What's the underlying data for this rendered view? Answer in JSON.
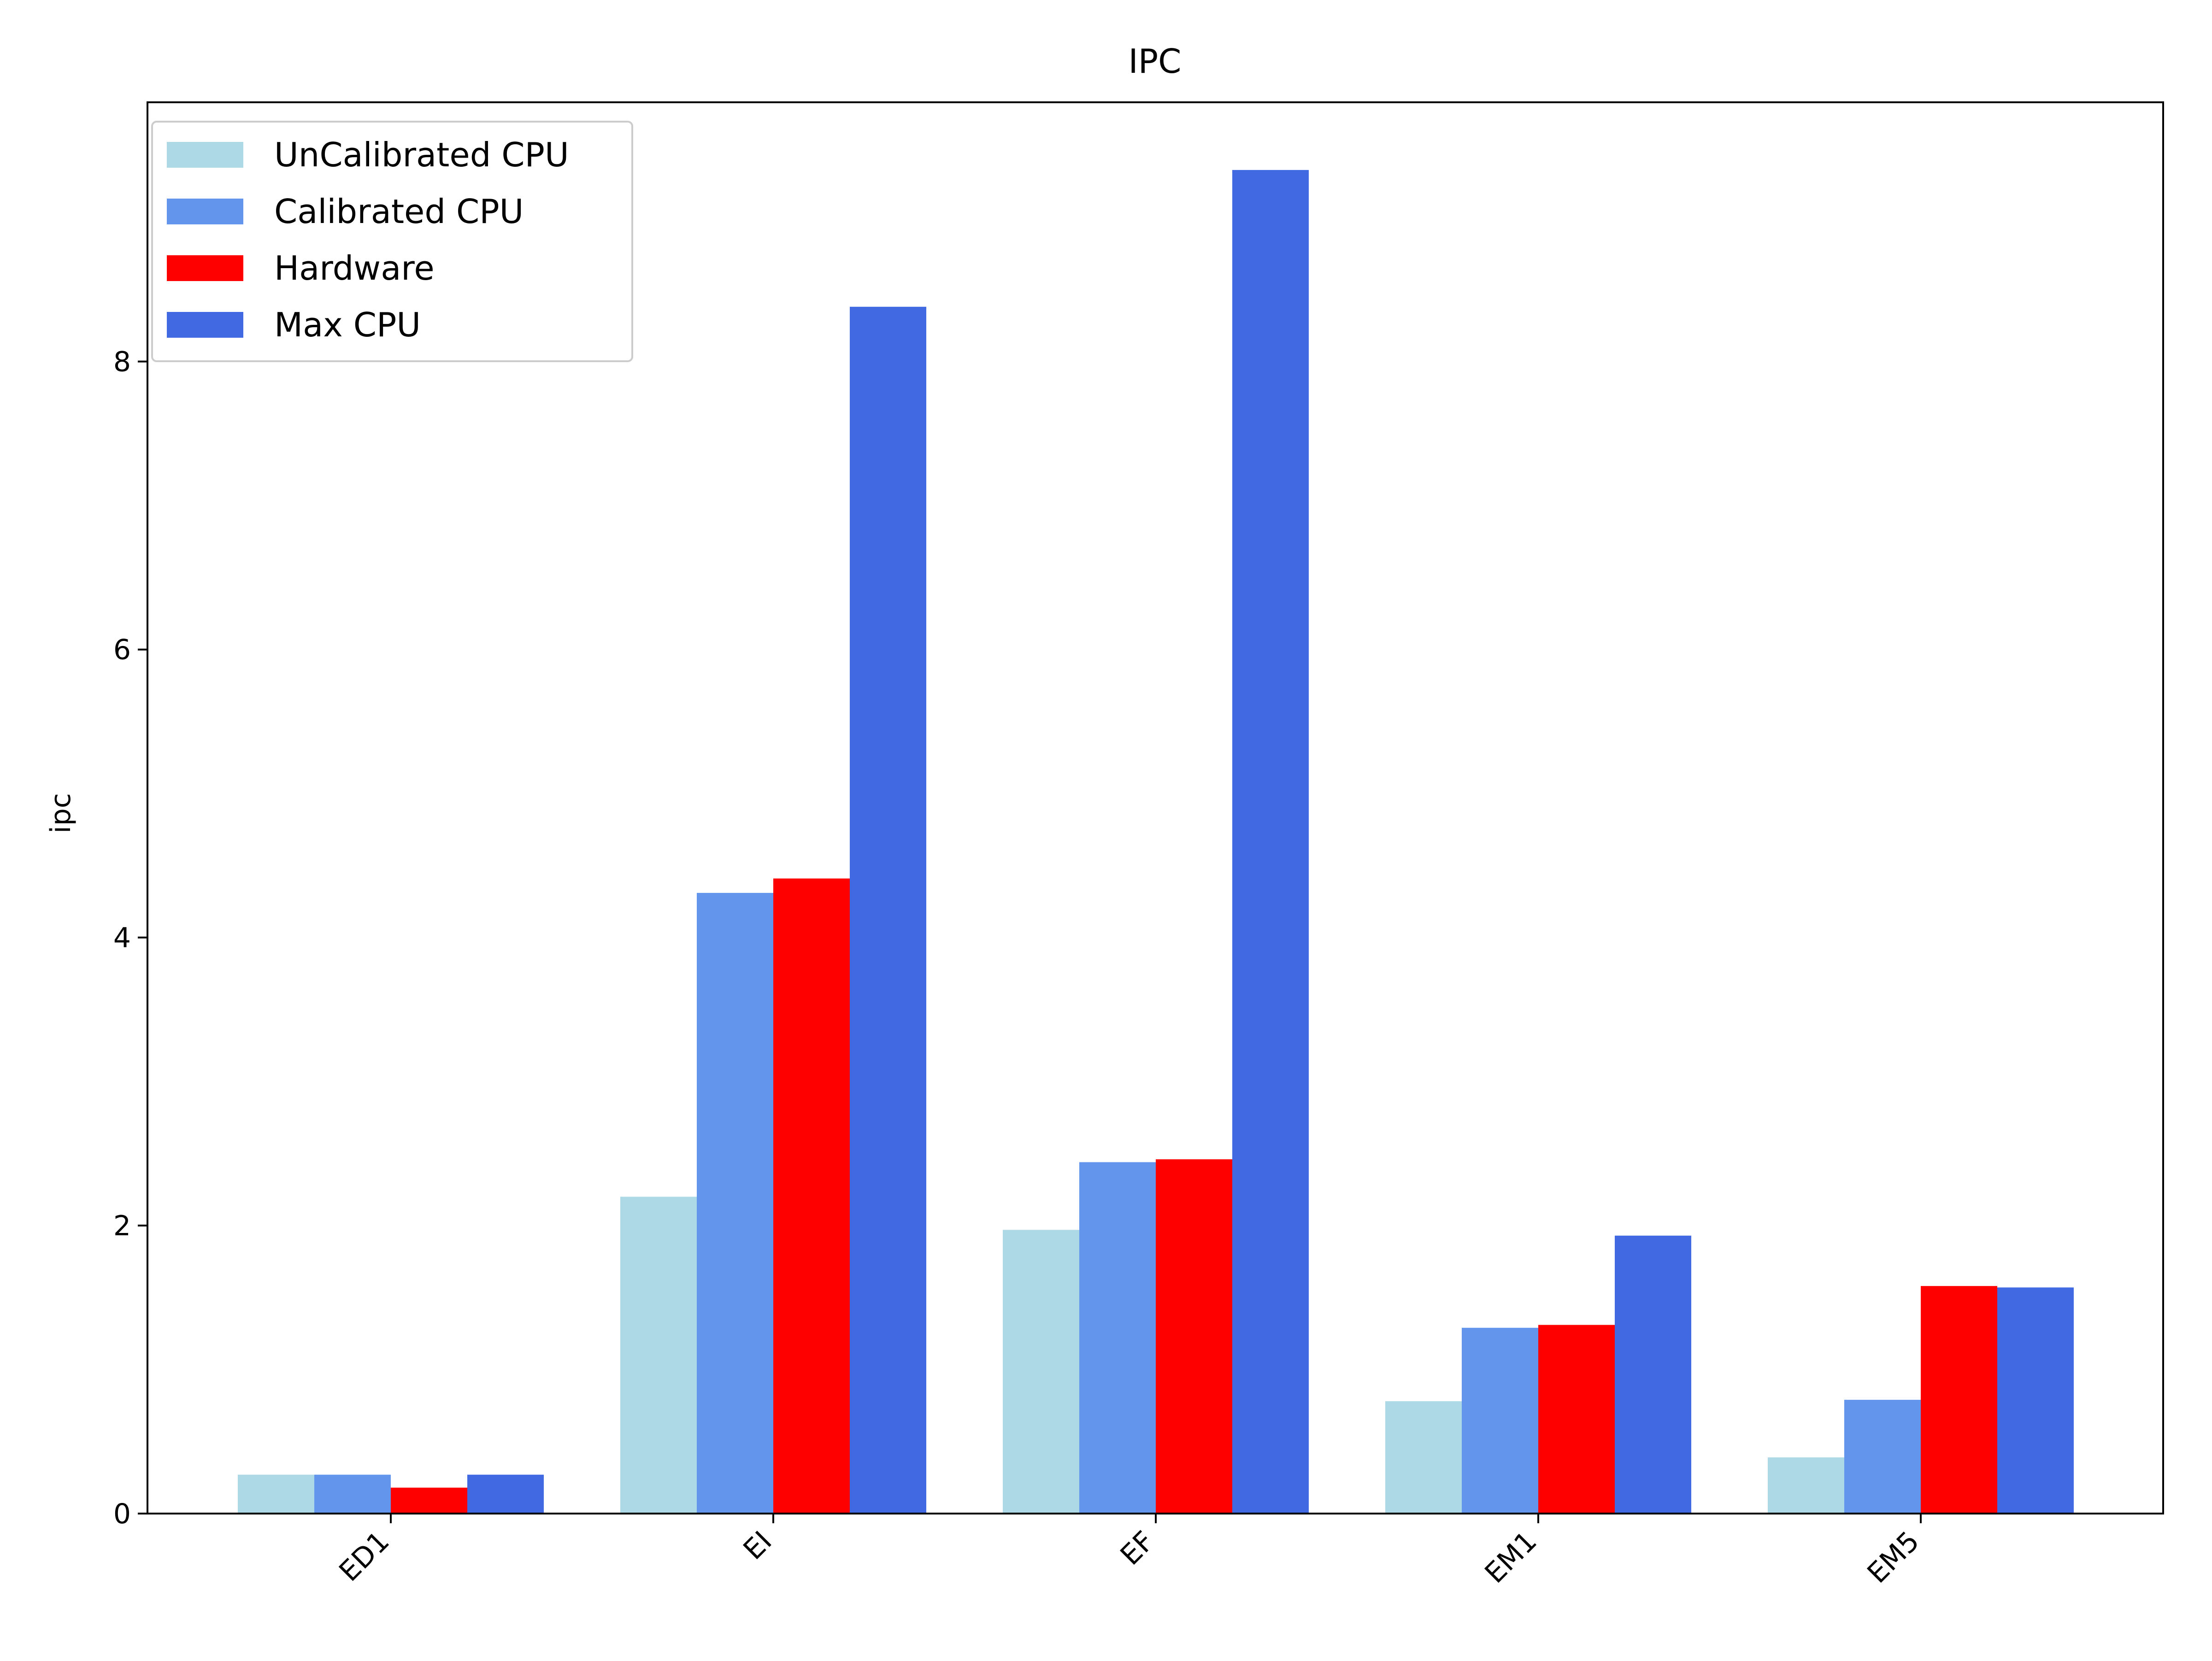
{
  "chart_data": {
    "type": "bar",
    "title": "IPC",
    "xlabel": "",
    "ylabel": "ipc",
    "categories": [
      "ED1",
      "EI",
      "EF",
      "EM1",
      "EM5"
    ],
    "series": [
      {
        "name": "UnCalibrated CPU",
        "color": "#add8e6",
        "values": [
          0.27,
          2.2,
          1.97,
          0.78,
          0.39
        ]
      },
      {
        "name": "Calibrated CPU",
        "color": "#6495ed",
        "values": [
          0.27,
          4.31,
          2.44,
          1.29,
          0.79
        ]
      },
      {
        "name": "Hardware",
        "color": "#ff0000",
        "values": [
          0.18,
          4.41,
          2.46,
          1.31,
          1.58
        ]
      },
      {
        "name": "Max CPU",
        "color": "#4169e1",
        "values": [
          0.27,
          8.38,
          9.33,
          1.93,
          1.57
        ]
      }
    ],
    "ylim": [
      0,
      9.8
    ],
    "yticks": [
      0,
      2,
      4,
      6,
      8
    ],
    "grid": false,
    "legend_position": "top-left"
  }
}
